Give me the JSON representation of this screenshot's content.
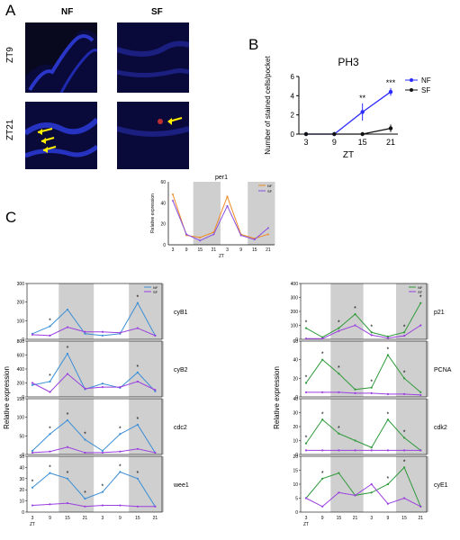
{
  "panels": {
    "a": "A",
    "b": "B",
    "c": "C"
  },
  "panel_a": {
    "col_labels": [
      "NF",
      "SF"
    ],
    "row_labels": [
      "ZT9",
      "ZT21"
    ]
  },
  "colors": {
    "nf_b": "#2b2bff",
    "sf_b": "#111111",
    "nf_blue": "#3d8fd6",
    "sf_purple": "#9a3fe0",
    "nf_green": "#2e9a3a",
    "per1_nf": "#f08a24",
    "per1_sf": "#8a4fe0",
    "shade": "#cfcfcf",
    "arrow": "#ffee00"
  },
  "chart_data": [
    {
      "id": "B",
      "type": "line",
      "title": "PH3",
      "xlabel": "ZT",
      "ylabel": "Number of stained cells/pocket",
      "categories": [
        "3",
        "9",
        "15",
        "21"
      ],
      "ylim": [
        0,
        6
      ],
      "yticks": [
        "0",
        "2",
        "4",
        "6"
      ],
      "legend": "right",
      "series": [
        {
          "name": "NF",
          "values": [
            0,
            0,
            2.3,
            4.4
          ],
          "errors": [
            0,
            0,
            0.9,
            0.4
          ]
        },
        {
          "name": "SF",
          "values": [
            0,
            0,
            0,
            0.6
          ],
          "errors": [
            0,
            0,
            0,
            0.4
          ]
        }
      ],
      "significance": [
        "",
        "",
        "**",
        "***"
      ]
    },
    {
      "id": "per1",
      "type": "line",
      "title": "per1",
      "ylabel": "Relative expression",
      "xlabel": "ZT",
      "categories": [
        "3",
        "9",
        "15",
        "21",
        "3",
        "9",
        "15",
        "21"
      ],
      "ylim": [
        0,
        60
      ],
      "yticks": [
        "0",
        "20",
        "40",
        "60"
      ],
      "legend": "top-right",
      "series": [
        {
          "name": "NF",
          "values": [
            48,
            9,
            7,
            12,
            46,
            10,
            6,
            10
          ]
        },
        {
          "name": "SF",
          "values": [
            42,
            10,
            4,
            10,
            37,
            9,
            5,
            16
          ]
        }
      ]
    }
  ],
  "left_charts": {
    "ylabel": "Relative expression",
    "xlabel": "ZT",
    "categories": [
      "3",
      "9",
      "15",
      "21",
      "3",
      "9",
      "15",
      "21"
    ],
    "legend": [
      "NF",
      "SF"
    ],
    "genes": [
      {
        "name": "cyB1",
        "yticks": [
          "0",
          "100",
          "200",
          "300"
        ],
        "ymax": 300,
        "nf": [
          30,
          70,
          160,
          30,
          20,
          30,
          195,
          20
        ],
        "sf": [
          25,
          20,
          65,
          40,
          40,
          35,
          60,
          20
        ],
        "stars": [
          "",
          "*",
          "",
          "",
          "",
          "",
          "*",
          ""
        ]
      },
      {
        "name": "cyB2",
        "yticks": [
          "0",
          "200",
          "400",
          "600",
          "800"
        ],
        "ymax": 800,
        "nf": [
          170,
          220,
          620,
          110,
          190,
          130,
          350,
          80
        ],
        "sf": [
          200,
          70,
          330,
          120,
          140,
          140,
          220,
          100
        ],
        "stars": [
          "",
          "*",
          "*",
          "",
          "",
          "",
          "*",
          ""
        ]
      },
      {
        "name": "cdc2",
        "yticks": [
          "0",
          "50",
          "100",
          "150"
        ],
        "ymax": 150,
        "nf": [
          10,
          55,
          92,
          40,
          10,
          55,
          80,
          5
        ],
        "sf": [
          5,
          8,
          20,
          5,
          5,
          8,
          15,
          5
        ],
        "stars": [
          "",
          "*",
          "*",
          "*",
          "",
          "*",
          "*",
          ""
        ]
      },
      {
        "name": "wee1",
        "yticks": [
          "0",
          "10",
          "20",
          "30",
          "40",
          "50"
        ],
        "ymax": 50,
        "nf": [
          22,
          35,
          30,
          12,
          18,
          36,
          30,
          5
        ],
        "sf": [
          6,
          7,
          8,
          5,
          6,
          6,
          5,
          5
        ],
        "stars": [
          "*",
          "*",
          "*",
          "*",
          "*",
          "*",
          "*",
          ""
        ]
      }
    ]
  },
  "right_charts": {
    "ylabel": "Relative expression",
    "xlabel": "ZT",
    "categories": [
      "3",
      "9",
      "15",
      "21",
      "3",
      "9",
      "15",
      "21"
    ],
    "legend": [
      "NF",
      "SF"
    ],
    "genes": [
      {
        "name": "p21",
        "yticks": [
          "0",
          "100",
          "200",
          "300",
          "400"
        ],
        "ymax": 400,
        "nf": [
          80,
          15,
          80,
          180,
          50,
          20,
          50,
          260
        ],
        "sf": [
          5,
          5,
          60,
          100,
          30,
          10,
          25,
          100
        ],
        "stars": [
          "*",
          "",
          "*",
          "*",
          "*",
          "",
          "*",
          "*"
        ]
      },
      {
        "name": "PCNA",
        "yticks": [
          "0",
          "20",
          "40",
          "60"
        ],
        "ymax": 60,
        "nf": [
          15,
          40,
          25,
          8,
          10,
          45,
          20,
          5
        ],
        "sf": [
          5,
          5,
          5,
          4,
          4,
          3,
          3,
          2
        ],
        "stars": [
          "*",
          "*",
          "*",
          "",
          "*",
          "*",
          "*",
          ""
        ]
      },
      {
        "name": "cdk2",
        "yticks": [
          "0",
          "10",
          "20",
          "30",
          "40"
        ],
        "ymax": 40,
        "nf": [
          8,
          25,
          15,
          10,
          5,
          25,
          12,
          3
        ],
        "sf": [
          3,
          3,
          3,
          3,
          3,
          3,
          3,
          3
        ],
        "stars": [
          "*",
          "*",
          "*",
          "",
          "",
          "*",
          "*",
          ""
        ]
      },
      {
        "name": "cyE1",
        "yticks": [
          "0",
          "5",
          "10",
          "15",
          "20"
        ],
        "ymax": 20,
        "nf": [
          5,
          12,
          14,
          6,
          7,
          10,
          16,
          2
        ],
        "sf": [
          5,
          2,
          7,
          6,
          10,
          3,
          5,
          2
        ],
        "stars": [
          "",
          "*",
          "",
          "",
          "",
          "*",
          "*",
          ""
        ]
      }
    ]
  }
}
